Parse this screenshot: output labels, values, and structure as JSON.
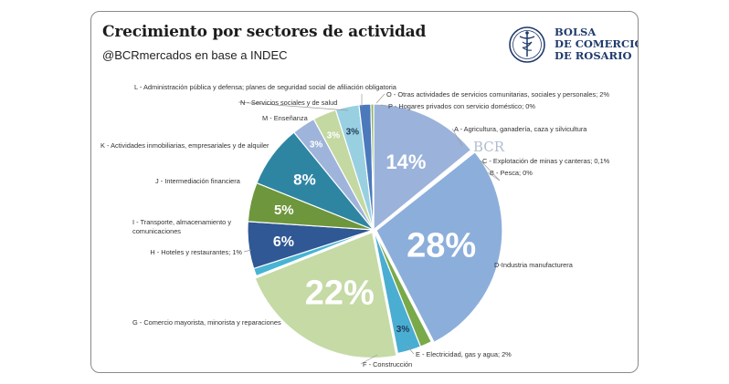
{
  "header": {
    "title": "Crecimiento por sectores de actividad",
    "subtitle": "@BCRmercados en base a INDEC"
  },
  "logo": {
    "lines": [
      "BOLSA",
      "DE COMERCIO",
      "DE ROSARIO"
    ],
    "watermark": "BCR",
    "icon": "caduceus-seal-icon"
  },
  "colors": {
    "A": "#9bb3da",
    "B": "#4b74b4",
    "C": "#2e4f86",
    "D": "#8caedb",
    "E": "#7aa94a",
    "F": "#4aadd2",
    "G": "#c5daa5",
    "H": "#48b4d4",
    "I": "#2f5894",
    "J": "#6e963c",
    "K": "#2e85a2",
    "L": "#9fb4db",
    "M": "#c4d8a2",
    "N": "#98d0e2",
    "O": "#4b79bc",
    "P": "#8fb35a"
  },
  "chart_data": {
    "type": "pie",
    "title": "Crecimiento por sectores de actividad",
    "slices": [
      {
        "key": "A",
        "label": "A - Agricultura, ganadería, caza y silvicultura",
        "value": 14,
        "display": "14%"
      },
      {
        "key": "B",
        "label": "B - Pesca; 0%",
        "value": 0.15,
        "display": ""
      },
      {
        "key": "C",
        "label": "C - Explotación de minas y canteras; 0,1%",
        "value": 0.1,
        "display": ""
      },
      {
        "key": "D",
        "label": "D-Industria manufacturera",
        "value": 28,
        "display": "28%"
      },
      {
        "key": "E",
        "label": "E - Electricidad, gas y agua; 2%",
        "value": 1.5,
        "display": ""
      },
      {
        "key": "F",
        "label": "F - Construcción",
        "value": 3,
        "display": "3%"
      },
      {
        "key": "G",
        "label": "G - Comercio mayorista, minorista y reparaciones",
        "value": 22,
        "display": "22%"
      },
      {
        "key": "H",
        "label": "H - Hoteles y restaurantes; 1%",
        "value": 1,
        "display": ""
      },
      {
        "key": "I",
        "label": "I - Transporte, almacenamiento y comunicaciones",
        "value": 6,
        "display": "6%"
      },
      {
        "key": "J",
        "label": "J - Intermediación financiera",
        "value": 5,
        "display": "5%"
      },
      {
        "key": "K",
        "label": "K - Actividades inmobiliarias, empresariales y de alquiler",
        "value": 8,
        "display": "8%"
      },
      {
        "key": "L",
        "label": "L - Administración pública y defensa; planes de seguridad social de afiliación obligatoria",
        "value": 3,
        "display": "3%"
      },
      {
        "key": "M",
        "label": "M - Enseñanza",
        "value": 3,
        "display": "3%"
      },
      {
        "key": "N",
        "label": "N - Servicios sociales y de salud",
        "value": 3,
        "display": "3%"
      },
      {
        "key": "O",
        "label": "O - Otras actividades de servicios comunitarias, sociales y personales; 2%",
        "value": 1.5,
        "display": ""
      },
      {
        "key": "P",
        "label": "P - Hogares privados con servicio doméstico; 0%",
        "value": 0.35,
        "display": ""
      }
    ]
  }
}
